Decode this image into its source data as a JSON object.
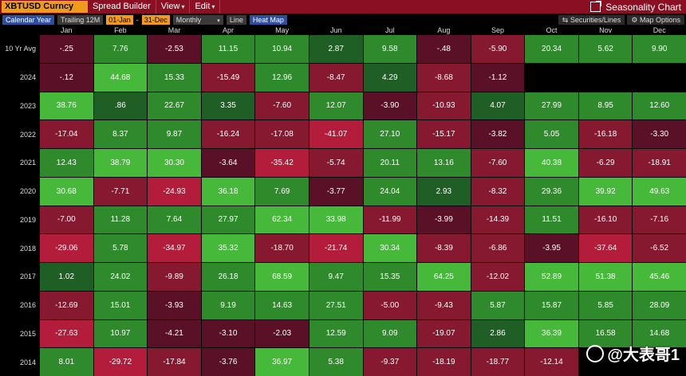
{
  "topbar": {
    "ticker": "XBTUSD Curncy",
    "menu": [
      "Spread Builder",
      "View",
      "Edit"
    ],
    "title": "Seasonality Chart"
  },
  "toolbar": {
    "calendar": "Calendar Year",
    "trailing": "Trailing 12M",
    "date_from": "01-Jan",
    "dash": "-",
    "date_to": "31-Dec",
    "frequency": "Monthly",
    "line": "Line",
    "heatmap": "Heat Map",
    "securities": "Securities/Lines",
    "map_options": "Map Options"
  },
  "colors": {
    "pos_strong": "#46b83a",
    "pos_mid": "#2f8a2c",
    "pos_weak": "#1f5e24",
    "neg_strong": "#b31d3b",
    "neg_mid": "#861830",
    "neg_weak": "#5a1026"
  },
  "months": [
    "Jan",
    "Feb",
    "Mar",
    "Apr",
    "May",
    "Jun",
    "Jul",
    "Aug",
    "Sep",
    "Oct",
    "Nov",
    "Dec"
  ],
  "rows": [
    {
      "label": "10 Yr Avg",
      "values": [
        "-.25",
        "7.76",
        "-2.53",
        "11.15",
        "10.94",
        "2.87",
        "9.58",
        "-.48",
        "-5.90",
        "20.34",
        "5.62",
        "9.90"
      ]
    },
    {
      "label": "2024",
      "values": [
        "-.12",
        "44.68",
        "15.33",
        "-15.49",
        "12.96",
        "-8.47",
        "4.29",
        "-8.68",
        "-1.12",
        "",
        "",
        ""
      ]
    },
    {
      "label": "2023",
      "values": [
        "38.76",
        ".86",
        "22.67",
        "3.35",
        "-7.60",
        "12.07",
        "-3.90",
        "-10.93",
        "4.07",
        "27.99",
        "8.95",
        "12.60"
      ]
    },
    {
      "label": "2022",
      "values": [
        "-17.04",
        "8.37",
        "9.87",
        "-16.24",
        "-17.08",
        "-41.07",
        "27.10",
        "-15.17",
        "-3.82",
        "5.05",
        "-16.18",
        "-3.30"
      ]
    },
    {
      "label": "2021",
      "values": [
        "12.43",
        "38.79",
        "30.30",
        "-3.64",
        "-35.42",
        "-5.74",
        "20.11",
        "13.16",
        "-7.60",
        "40.38",
        "-6.29",
        "-18.91"
      ]
    },
    {
      "label": "2020",
      "values": [
        "30.68",
        "-7.71",
        "-24.93",
        "36.18",
        "7.69",
        "-3.77",
        "24.04",
        "2.93",
        "-8.32",
        "29.36",
        "39.92",
        "49.63"
      ]
    },
    {
      "label": "2019",
      "values": [
        "-7.00",
        "11.28",
        "7.64",
        "27.97",
        "62.34",
        "33.98",
        "-11.99",
        "-3.99",
        "-14.39",
        "11.51",
        "-16.10",
        "-7.16"
      ]
    },
    {
      "label": "2018",
      "values": [
        "-29.06",
        "5.78",
        "-34.97",
        "35.32",
        "-18.70",
        "-21.74",
        "30.34",
        "-8.39",
        "-6.86",
        "-3.95",
        "-37.64",
        "-6.52"
      ]
    },
    {
      "label": "2017",
      "values": [
        "1.02",
        "24.02",
        "-9.89",
        "26.18",
        "68.59",
        "9.47",
        "15.35",
        "64.25",
        "-12.02",
        "52.89",
        "51.38",
        "45.46"
      ]
    },
    {
      "label": "2016",
      "values": [
        "-12.69",
        "15.01",
        "-3.93",
        "9.19",
        "14.63",
        "27.51",
        "-5.00",
        "-9.43",
        "5.87",
        "15.87",
        "5.85",
        "28.09"
      ]
    },
    {
      "label": "2015",
      "values": [
        "-27.63",
        "10.97",
        "-4.21",
        "-3.10",
        "-2.03",
        "12.59",
        "9.09",
        "-19.07",
        "2.86",
        "36.39",
        "16.58",
        "14.68"
      ]
    },
    {
      "label": "2014",
      "values": [
        "8.01",
        "-29.72",
        "-17.84",
        "-3.76",
        "36.97",
        "5.38",
        "-9.37",
        "-18.19",
        "-18.77",
        "-12.14",
        "",
        ""
      ]
    }
  ],
  "watermark": "@大表哥1"
}
